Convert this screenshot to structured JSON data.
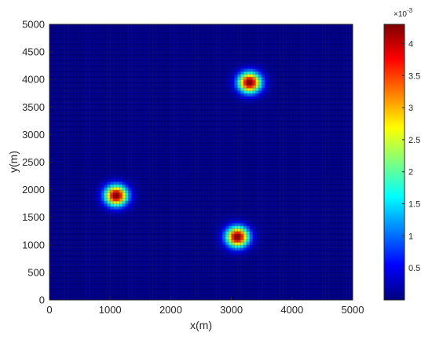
{
  "chart_data": {
    "type": "heatmap",
    "title": "",
    "xlabel": "x(m)",
    "ylabel": "y(m)",
    "xlim": [
      0,
      5000
    ],
    "ylim": [
      0,
      5000
    ],
    "x_ticks": [
      "0",
      "1000",
      "2000",
      "3000",
      "4000",
      "5000"
    ],
    "y_ticks": [
      "0",
      "500",
      "1000",
      "1500",
      "2000",
      "2500",
      "3000",
      "3500",
      "4000",
      "4500",
      "5000"
    ],
    "grid_cells": 100,
    "colormap": "jet",
    "background_value": 0,
    "peaks": [
      {
        "x": 1100,
        "y": 1900,
        "peak": 0.0043,
        "spread": 130
      },
      {
        "x": 3100,
        "y": 1150,
        "peak": 0.0043,
        "spread": 130
      },
      {
        "x": 3300,
        "y": 3950,
        "peak": 0.0043,
        "spread": 130
      }
    ],
    "colorbar": {
      "range": [
        0,
        0.0043
      ],
      "multiplier": "×10",
      "exponent": "-3",
      "ticks": [
        {
          "value": 0.5,
          "label": "0.5"
        },
        {
          "value": 1,
          "label": "1"
        },
        {
          "value": 1.5,
          "label": "1.5"
        },
        {
          "value": 2,
          "label": "2"
        },
        {
          "value": 2.5,
          "label": "2.5"
        },
        {
          "value": 3,
          "label": "3"
        },
        {
          "value": 3.5,
          "label": "3.5"
        },
        {
          "value": 4,
          "label": "4"
        }
      ]
    },
    "colors": {
      "grid_line": "#000000",
      "axis": "#262626"
    }
  }
}
